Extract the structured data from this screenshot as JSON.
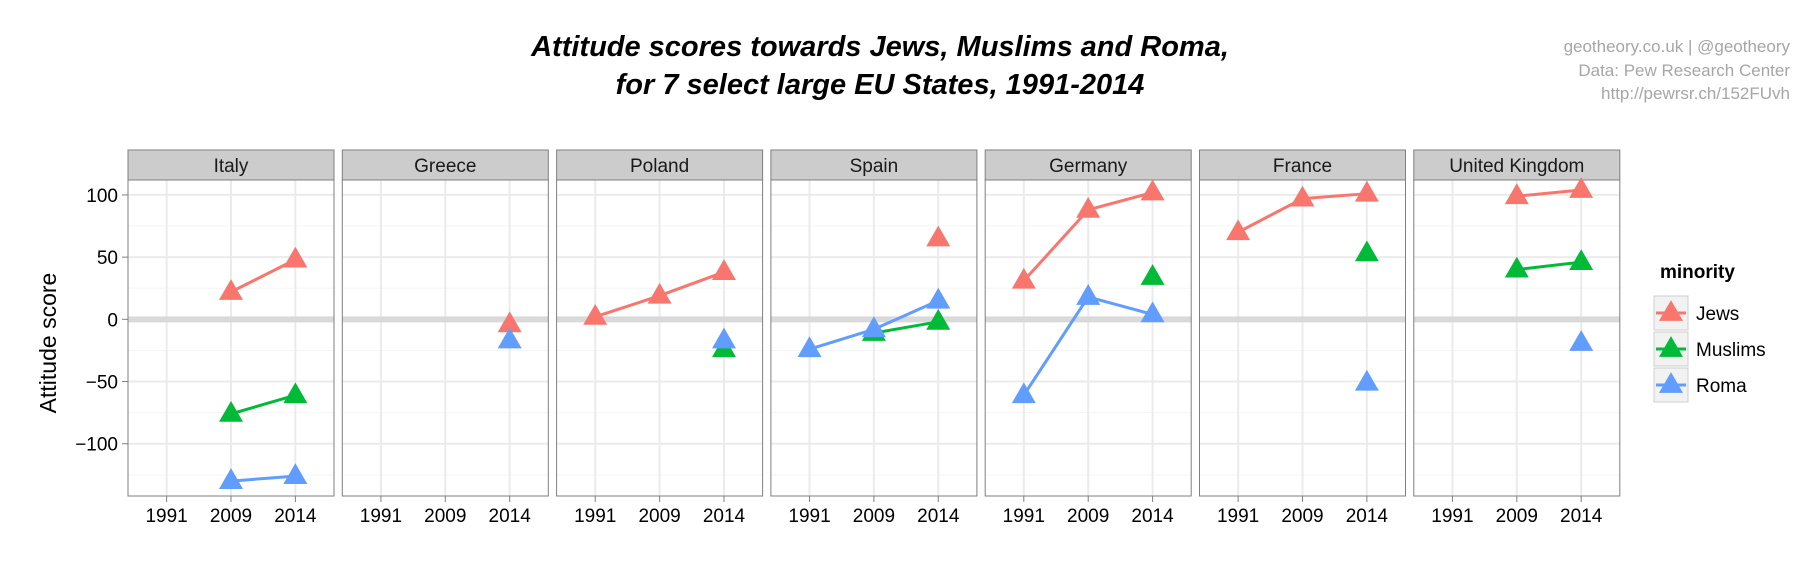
{
  "chart_data": {
    "type": "line",
    "title_lines": [
      "Attitude scores towards Jews, Muslims and Roma,",
      "for 7 select large EU States, 1991-2014"
    ],
    "credits": [
      "geotheory.co.uk | @geotheory",
      "Data: Pew Research Center",
      "http://pewrsr.ch/152FUvh"
    ],
    "ylabel": "Attitude score",
    "xlabel": "",
    "x_ticks": [
      "1991",
      "2009",
      "2014"
    ],
    "y_ticks": [
      100,
      50,
      0,
      -50,
      -100
    ],
    "ylim": [
      -142,
      112
    ],
    "legend": {
      "title": "minority",
      "placement": "right",
      "entries": [
        {
          "name": "Jews",
          "color": "#f8766d"
        },
        {
          "name": "Muslims",
          "color": "#00ba38"
        },
        {
          "name": "Roma",
          "color": "#619cff"
        }
      ]
    },
    "facets": [
      {
        "name": "Italy",
        "series": {
          "Jews": [
            null,
            22,
            48
          ],
          "Muslims": [
            null,
            -76,
            -61
          ],
          "Roma": [
            null,
            -130,
            -126
          ]
        }
      },
      {
        "name": "Greece",
        "series": {
          "Jews": [
            null,
            null,
            -4
          ],
          "Muslims": [
            null,
            null,
            null
          ],
          "Roma": [
            null,
            null,
            -17
          ]
        }
      },
      {
        "name": "Poland",
        "series": {
          "Jews": [
            2,
            19,
            38
          ],
          "Muslims": [
            null,
            null,
            -24
          ],
          "Roma": [
            null,
            null,
            -17
          ]
        }
      },
      {
        "name": "Spain",
        "series": {
          "Jews": [
            null,
            null,
            65
          ],
          "Muslims": [
            null,
            -11,
            -2
          ],
          "Roma": [
            -24,
            -8,
            15
          ]
        }
      },
      {
        "name": "Germany",
        "series": {
          "Jews": [
            31,
            88,
            102
          ],
          "Muslims": [
            null,
            null,
            34
          ],
          "Roma": [
            -61,
            18,
            4
          ]
        }
      },
      {
        "name": "France",
        "series": {
          "Jews": [
            70,
            97,
            101
          ],
          "Muslims": [
            null,
            null,
            53
          ],
          "Roma": [
            null,
            null,
            -51
          ]
        }
      },
      {
        "name": "United Kingdom",
        "series": {
          "Jews": [
            null,
            99,
            104
          ],
          "Muslims": [
            null,
            40,
            46
          ],
          "Roma": [
            null,
            null,
            -19
          ]
        }
      }
    ]
  }
}
